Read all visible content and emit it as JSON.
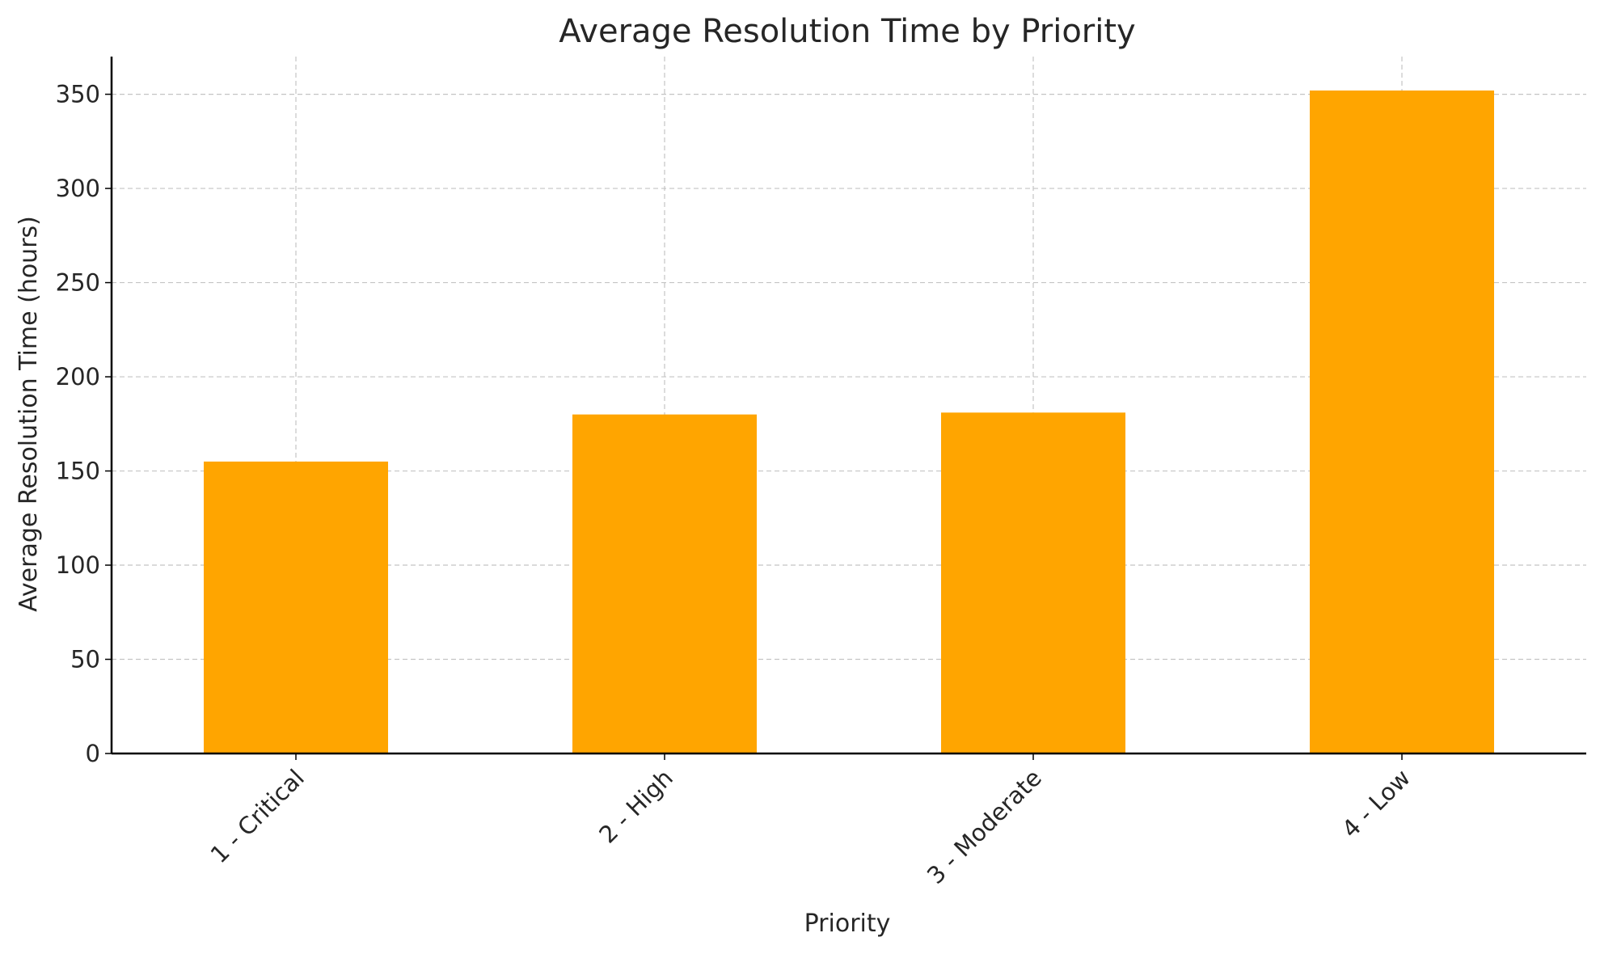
{
  "chart_data": {
    "type": "bar",
    "title": "Average Resolution Time by Priority",
    "xlabel": "Priority",
    "ylabel": "Average Resolution Time (hours)",
    "categories": [
      "1 - Critical",
      "2 - High",
      "3 - Moderate",
      "4 - Low"
    ],
    "values": [
      155,
      180,
      181,
      352
    ],
    "ylim": [
      0,
      370
    ],
    "yticks": [
      0,
      50,
      100,
      150,
      200,
      250,
      300,
      350
    ],
    "grid": true,
    "bar_color": "#FFA500"
  }
}
